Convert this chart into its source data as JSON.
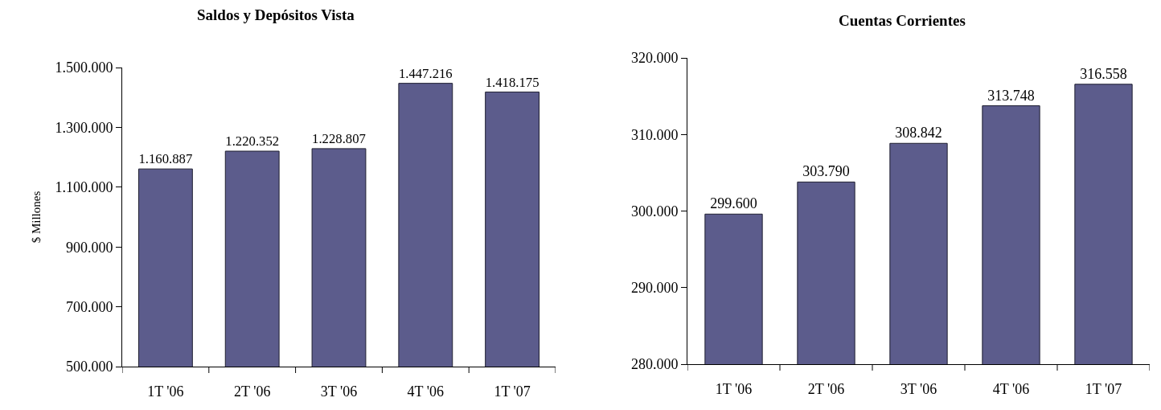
{
  "chart_data": [
    {
      "type": "bar",
      "title": "Saldos y Depósitos Vista",
      "ylabel": "$ Millones",
      "categories": [
        "1T '06",
        "2T '06",
        "3T '06",
        "4T '06",
        "1T '07"
      ],
      "values": [
        1160887,
        1220352,
        1228807,
        1447216,
        1418175
      ],
      "value_labels": [
        "1.160.887",
        "1.220.352",
        "1.228.807",
        "1.447.216",
        "1.418.175"
      ],
      "color": "#5c5c8c",
      "ylim": [
        500000,
        1500000
      ],
      "yticks": [
        {
          "value": 500000,
          "label": "500.000"
        },
        {
          "value": 700000,
          "label": "700.000"
        },
        {
          "value": 900000,
          "label": "900.000"
        },
        {
          "value": 1100000,
          "label": "1.100.000"
        },
        {
          "value": 1300000,
          "label": "1.300.000"
        },
        {
          "value": 1500000,
          "label": "1.500.000"
        }
      ]
    },
    {
      "type": "bar",
      "title": "Cuentas Corrientes",
      "categories": [
        "1T '06",
        "2T '06",
        "3T '06",
        "4T '06",
        "1T '07"
      ],
      "values": [
        299600,
        303790,
        308842,
        313748,
        316558
      ],
      "value_labels": [
        "299.600",
        "303.790",
        "308.842",
        "313.748",
        "316.558"
      ],
      "color": "#5c5c8c",
      "ylim": [
        280000,
        320000
      ],
      "yticks": [
        {
          "value": 280000,
          "label": "280.000"
        },
        {
          "value": 290000,
          "label": "290.000"
        },
        {
          "value": 300000,
          "label": "300.000"
        },
        {
          "value": 310000,
          "label": "310.000"
        },
        {
          "value": 320000,
          "label": "320.000"
        }
      ]
    }
  ]
}
